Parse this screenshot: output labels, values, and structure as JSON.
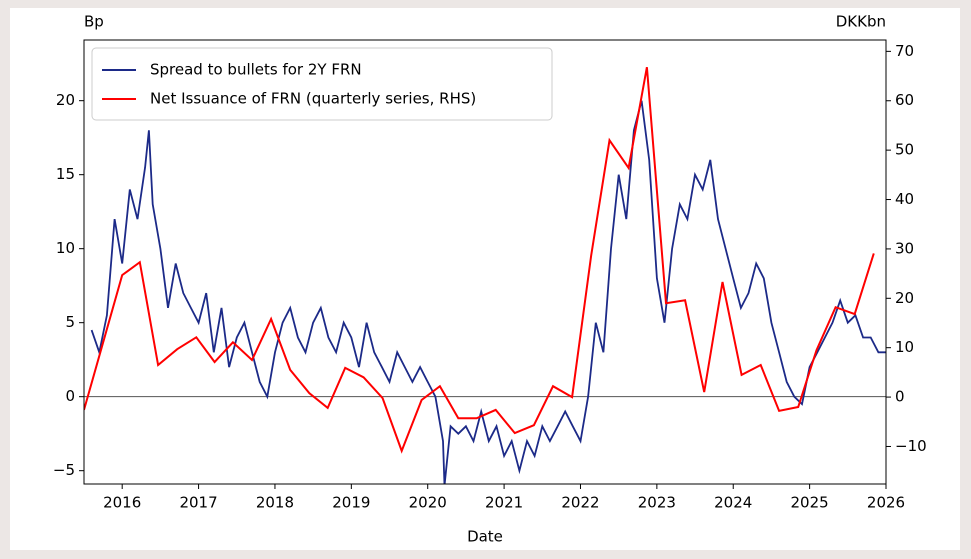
{
  "chart_data": {
    "type": "line",
    "ylabel": "Bp",
    "y2label": "DKKbn",
    "xlabel": "Date",
    "xlim": [
      2015.5,
      2026.0
    ],
    "xticks": [
      2016,
      2017,
      2018,
      2019,
      2020,
      2021,
      2022,
      2023,
      2024,
      2025,
      2026
    ],
    "ylim": [
      -5.9,
      24.1
    ],
    "yticks": [
      {
        "value": -5,
        "label": "−5"
      },
      0,
      5,
      10,
      15,
      20
    ],
    "y2lim": [
      -17.6,
      72.3
    ],
    "y2ticks": [
      {
        "value": -10,
        "label": "−10"
      },
      0,
      10,
      20,
      30,
      40,
      50,
      60,
      70
    ],
    "hline": 0,
    "legend": "upper left",
    "series": [
      {
        "name": "Spread to bullets for 2Y FRN",
        "color": "#1c2a88",
        "x": [
          2015.6,
          2015.7,
          2015.8,
          2015.9,
          2016.0,
          2016.1,
          2016.2,
          2016.3,
          2016.35,
          2016.4,
          2016.5,
          2016.6,
          2016.7,
          2016.8,
          2016.9,
          2017.0,
          2017.1,
          2017.2,
          2017.3,
          2017.4,
          2017.5,
          2017.6,
          2017.7,
          2017.8,
          2017.9,
          2018.0,
          2018.1,
          2018.2,
          2018.3,
          2018.4,
          2018.5,
          2018.6,
          2018.7,
          2018.8,
          2018.9,
          2019.0,
          2019.1,
          2019.2,
          2019.3,
          2019.4,
          2019.5,
          2019.6,
          2019.7,
          2019.8,
          2019.9,
          2020.0,
          2020.1,
          2020.2,
          2020.22,
          2020.3,
          2020.4,
          2020.5,
          2020.6,
          2020.7,
          2020.8,
          2020.9,
          2021.0,
          2021.1,
          2021.2,
          2021.3,
          2021.4,
          2021.5,
          2021.6,
          2021.7,
          2021.8,
          2021.9,
          2022.0,
          2022.1,
          2022.2,
          2022.3,
          2022.4,
          2022.5,
          2022.6,
          2022.7,
          2022.8,
          2022.9,
          2023.0,
          2023.1,
          2023.2,
          2023.3,
          2023.4,
          2023.5,
          2023.6,
          2023.7,
          2023.8,
          2023.9,
          2024.0,
          2024.1,
          2024.2,
          2024.3,
          2024.4,
          2024.5,
          2024.6,
          2024.7,
          2024.8,
          2024.9,
          2025.0,
          2025.1,
          2025.2,
          2025.3,
          2025.4,
          2025.5,
          2025.6,
          2025.7,
          2025.8,
          2025.9,
          2026.0
        ],
        "values": [
          4.5,
          3,
          5.5,
          12,
          9,
          14,
          12,
          15.5,
          18,
          13,
          10,
          6,
          9,
          7,
          6,
          5,
          7,
          3,
          6,
          2,
          4,
          5,
          3,
          1,
          0,
          3,
          5,
          6,
          4,
          3,
          5,
          6,
          4,
          3,
          5,
          4,
          2,
          5,
          3,
          2,
          1,
          3,
          2,
          1,
          2,
          1,
          0,
          -3,
          -6,
          -2,
          -2.5,
          -2,
          -3,
          -1,
          -3,
          -2,
          -4,
          -3,
          -5,
          -3,
          -4,
          -2,
          -3,
          -2,
          -1,
          -2,
          -3,
          0,
          5,
          3,
          10,
          15,
          12,
          18,
          20,
          16,
          8,
          5,
          10,
          13,
          12,
          15,
          14,
          16,
          12,
          10,
          8,
          6,
          7,
          9,
          8,
          5,
          3,
          1,
          0,
          -0.5,
          2,
          3,
          4,
          5,
          6.5,
          5,
          5.5,
          4,
          4,
          3,
          3
        ]
      },
      {
        "name": "Net Issuance of FRN (quarterly series, RHS)",
        "color": "#ff0000",
        "axis": "y2",
        "x": [
          2015.5,
          2016.0,
          2016.23,
          2016.47,
          2016.72,
          2016.97,
          2017.21,
          2017.45,
          2017.7,
          2017.95,
          2018.2,
          2018.45,
          2018.69,
          2018.92,
          2019.16,
          2019.41,
          2019.66,
          2019.92,
          2020.16,
          2020.4,
          2020.64,
          2020.89,
          2021.14,
          2021.39,
          2021.64,
          2021.89,
          2022.14,
          2022.38,
          2022.63,
          2022.87,
          2023.12,
          2023.37,
          2023.62,
          2023.86,
          2024.11,
          2024.36,
          2024.6,
          2024.85,
          2025.09,
          2025.34,
          2025.59,
          2025.84
        ],
        "values": [
          -2.6,
          24.7,
          27.3,
          6.5,
          9.7,
          12.1,
          7.1,
          11.1,
          7.5,
          15.8,
          5.5,
          0.8,
          -2.2,
          5.9,
          4.0,
          -0.2,
          -10.9,
          -0.6,
          2.2,
          -4.3,
          -4.3,
          -2.6,
          -7.3,
          -5.7,
          2.2,
          0,
          28.7,
          52.0,
          46.4,
          66.8,
          19.0,
          19.6,
          1.0,
          23.3,
          4.5,
          6.5,
          -2.8,
          -2.0,
          9.5,
          18.2,
          16.8,
          29.1
        ]
      }
    ]
  }
}
